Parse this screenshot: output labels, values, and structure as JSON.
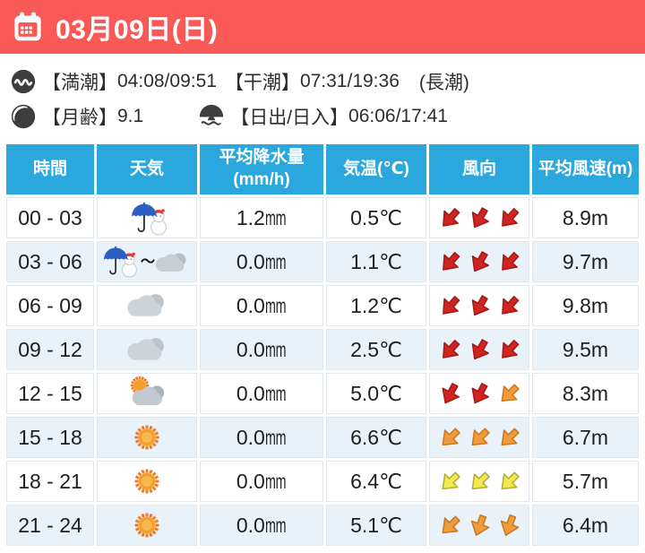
{
  "colors": {
    "accent_red": "#f95a58",
    "header_blue": "#2aa7dc",
    "row_alt_blue": "#e9f2f9",
    "arrow_colors": {
      "red": {
        "fill": "#d02423",
        "stroke": "#a31a19"
      },
      "orange": {
        "fill": "#f09c3c",
        "stroke": "#cb7a20"
      },
      "yellow": {
        "fill": "#f1e94f",
        "stroke": "#b5ab39"
      }
    }
  },
  "header": {
    "date_label": "03月09日(日)"
  },
  "info": {
    "tide": {
      "high_label": "【満潮】",
      "high_value": "04:08/09:51",
      "low_label": "【干潮】",
      "low_value": "07:31/19:36",
      "cycle": "(長潮)"
    },
    "moon": {
      "label": "【月齢】",
      "value": "9.1"
    },
    "sun": {
      "label": "【日出/日入】",
      "value": "06:06/17:41"
    }
  },
  "table": {
    "columns": [
      {
        "label": "時間"
      },
      {
        "label": "天気"
      },
      {
        "label": "平均降水量",
        "sub": "(mm/h)"
      },
      {
        "label": "気温(℃)"
      },
      {
        "label": "風向"
      },
      {
        "label": "平均風速(m)"
      }
    ],
    "weather_transition_symbol": "～",
    "rows": [
      {
        "time": "00 - 03",
        "weather": "sleet",
        "precip": "1.2",
        "precip_unit": "mm",
        "temp": "0.5",
        "temp_unit": "℃",
        "wind": [
          {
            "color": "red",
            "angle": 42
          },
          {
            "color": "red",
            "angle": 30
          },
          {
            "color": "red",
            "angle": 42
          }
        ],
        "speed": "8.9",
        "speed_unit": "m"
      },
      {
        "time": "03 - 06",
        "weather": "sleet-to-cloud",
        "precip": "0.0",
        "precip_unit": "mm",
        "temp": "1.1",
        "temp_unit": "℃",
        "wind": [
          {
            "color": "red",
            "angle": 42
          },
          {
            "color": "red",
            "angle": 30
          },
          {
            "color": "red",
            "angle": 42
          }
        ],
        "speed": "9.7",
        "speed_unit": "m"
      },
      {
        "time": "06 - 09",
        "weather": "cloud",
        "precip": "0.0",
        "precip_unit": "mm",
        "temp": "1.2",
        "temp_unit": "℃",
        "wind": [
          {
            "color": "red",
            "angle": 42
          },
          {
            "color": "red",
            "angle": 30
          },
          {
            "color": "red",
            "angle": 42
          }
        ],
        "speed": "9.8",
        "speed_unit": "m"
      },
      {
        "time": "09 - 12",
        "weather": "cloud",
        "precip": "0.0",
        "precip_unit": "mm",
        "temp": "2.5",
        "temp_unit": "℃",
        "wind": [
          {
            "color": "red",
            "angle": 42
          },
          {
            "color": "red",
            "angle": 30
          },
          {
            "color": "red",
            "angle": 42
          }
        ],
        "speed": "9.5",
        "speed_unit": "m"
      },
      {
        "time": "12 - 15",
        "weather": "sun-cloud",
        "precip": "0.0",
        "precip_unit": "mm",
        "temp": "5.0",
        "temp_unit": "℃",
        "wind": [
          {
            "color": "red",
            "angle": 28
          },
          {
            "color": "red",
            "angle": 28
          },
          {
            "color": "orange",
            "angle": 46
          }
        ],
        "speed": "8.3",
        "speed_unit": "m"
      },
      {
        "time": "15 - 18",
        "weather": "sun",
        "precip": "0.0",
        "precip_unit": "mm",
        "temp": "6.6",
        "temp_unit": "℃",
        "wind": [
          {
            "color": "orange",
            "angle": 46
          },
          {
            "color": "orange",
            "angle": 46
          },
          {
            "color": "orange",
            "angle": 46
          }
        ],
        "speed": "6.7",
        "speed_unit": "m"
      },
      {
        "time": "18 - 21",
        "weather": "sun",
        "precip": "0.0",
        "precip_unit": "mm",
        "temp": "6.4",
        "temp_unit": "℃",
        "wind": [
          {
            "color": "yellow",
            "angle": 46
          },
          {
            "color": "yellow",
            "angle": 46
          },
          {
            "color": "yellow",
            "angle": 46
          }
        ],
        "speed": "5.7",
        "speed_unit": "m"
      },
      {
        "time": "21 - 24",
        "weather": "sun",
        "precip": "0.0",
        "precip_unit": "mm",
        "temp": "5.1",
        "temp_unit": "℃",
        "wind": [
          {
            "color": "orange",
            "angle": 46
          },
          {
            "color": "orange",
            "angle": 20
          },
          {
            "color": "orange",
            "angle": 20
          }
        ],
        "speed": "6.4",
        "speed_unit": "m"
      }
    ]
  }
}
